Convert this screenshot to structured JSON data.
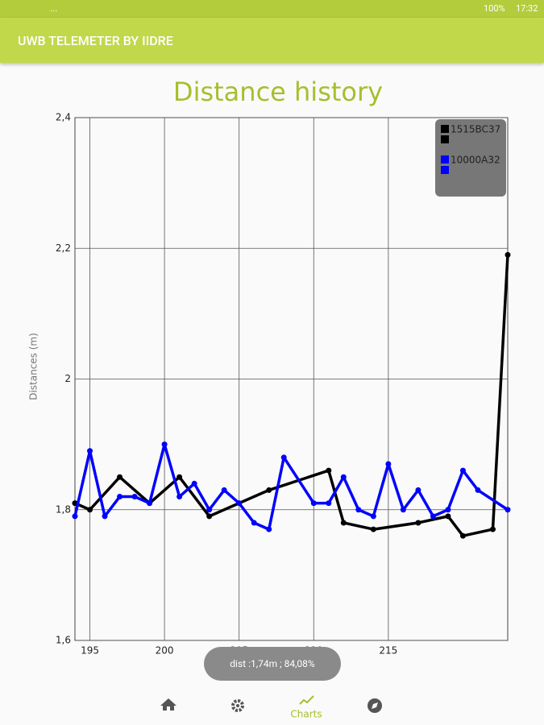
{
  "status_bar": {
    "notifications": "...",
    "battery": "100%",
    "time": "17:32"
  },
  "app_bar": {
    "title": "UWB TELEMETER BY IIDRE"
  },
  "chart_data": {
    "type": "line",
    "title": "Distance history",
    "y_label": "Distances (m)",
    "xlim": [
      194,
      223
    ],
    "xticks": [
      195,
      200,
      205,
      210,
      215
    ],
    "ylim": [
      1.6,
      2.4
    ],
    "yticks": [
      {
        "value": 1.6,
        "label": "1,6"
      },
      {
        "value": 1.8,
        "label": "1,8"
      },
      2,
      {
        "value": 2.2,
        "label": "2,2"
      },
      {
        "value": 2.4,
        "label": "2,4"
      }
    ],
    "grid": true,
    "legend": "top-right",
    "series": [
      {
        "name": "1515BC37",
        "color": "#000000",
        "x": [
          194,
          195,
          197,
          199,
          201,
          203,
          207,
          211,
          212,
          214,
          217,
          219,
          220,
          222,
          223
        ],
        "values": [
          1.81,
          1.8,
          1.85,
          1.81,
          1.85,
          1.79,
          1.83,
          1.86,
          1.78,
          1.77,
          1.78,
          1.79,
          1.76,
          1.77,
          2.19
        ]
      },
      {
        "name": "10000A32",
        "color": "#0000ff",
        "x": [
          194,
          195,
          196,
          197,
          198,
          199,
          200,
          201,
          202,
          203,
          204,
          205,
          206,
          207,
          208,
          210,
          211,
          212,
          213,
          214,
          215,
          216,
          217,
          218,
          219,
          220,
          221,
          223
        ],
        "values": [
          1.79,
          1.89,
          1.79,
          1.82,
          1.82,
          1.81,
          1.9,
          1.82,
          1.84,
          1.8,
          1.83,
          1.81,
          1.78,
          1.77,
          1.88,
          1.81,
          1.81,
          1.85,
          1.8,
          1.79,
          1.87,
          1.8,
          1.83,
          1.79,
          1.8,
          1.86,
          1.83,
          1.8
        ]
      }
    ]
  },
  "toast": {
    "text": "dist :1,74m ; 84,08%"
  },
  "nav": {
    "active_label": "Charts"
  }
}
